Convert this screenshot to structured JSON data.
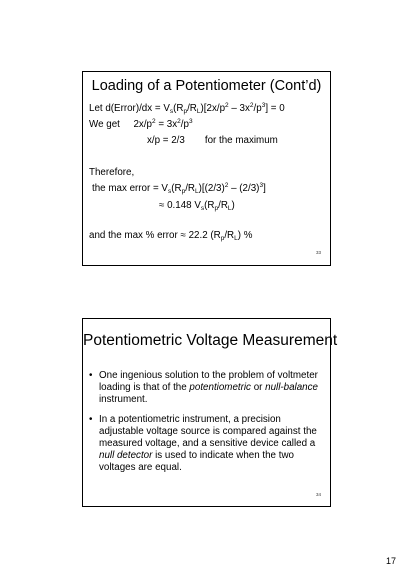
{
  "slide33": {
    "title": "Loading of a Potentiometer (Cont’d)",
    "number": "33",
    "line1": {
      "a": "Let d(Error)/dx = V",
      "s_sub": "s",
      "b": "(R",
      "p_sub": "p",
      "c": "/R",
      "L_sub": "L",
      "d": ")[2x/p",
      "sup2": "2",
      "e": " – 3x",
      "sup2b": "2",
      "f": "/p",
      "sup3": "3",
      "g": "] = 0"
    },
    "line2": {
      "a": "We get     2x/p",
      "sup2": "2",
      "b": " = 3x",
      "sup2b": "2",
      "c": "/p",
      "sup3": "3"
    },
    "line3": {
      "a": "x/p = 2/3",
      "b": "for the maximum"
    },
    "line4": "Therefore,",
    "line5": {
      "a": "the max error = V",
      "s_sub": "s",
      "b": "(R",
      "p_sub": "p",
      "c": "/R",
      "L_sub": "L",
      "d": ")[(2/3)",
      "sup2": "2",
      "e": " – (2/3)",
      "sup3": "3",
      "f": "]"
    },
    "line6": {
      "a": "≈ 0.148 V",
      "s_sub": "s",
      "b": "(R",
      "p_sub": "p",
      "c": "/R",
      "L_sub": "L",
      "d": ")"
    },
    "line7": {
      "a": "and the max % error ≈ 22.2 (R",
      "p_sub": "p",
      "b": "/R",
      "L_sub": "L",
      "c": ") %"
    }
  },
  "slide34": {
    "title": "Potentiometric Voltage Measurement",
    "number": "34",
    "bullet_char": "•",
    "bullet1": {
      "a": "One ingenious solution to the problem of voltmeter loading is that of the ",
      "em1": "potentiometric",
      "b": " or ",
      "em2": "null-balance",
      "c": " instrument."
    },
    "bullet2": {
      "a": "In a potentiometric instrument, a precision adjustable voltage source is compared against the measured voltage, and a sensitive device called a ",
      "em1": "null detector",
      "b": " is used to indicate when the two voltages are equal."
    }
  },
  "page_number": "17"
}
